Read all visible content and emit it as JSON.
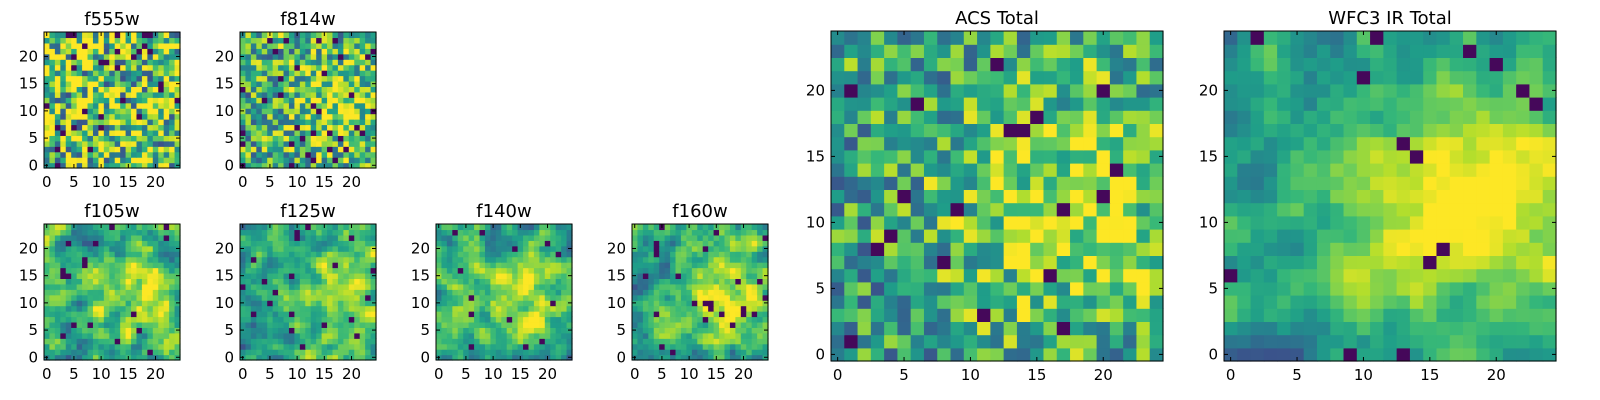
{
  "chart_data": [
    {
      "type": "heatmap",
      "title": "f555w",
      "grid_size": 25,
      "xlim": [
        0,
        25
      ],
      "ylim": [
        0,
        25
      ],
      "xticks": [
        0,
        5,
        10,
        15,
        20
      ],
      "yticks": [
        0,
        5,
        10,
        15,
        20
      ],
      "colormap": "viridis",
      "seed": 11,
      "smooth": 0,
      "trend": 0.0,
      "dark_fraction": 0.05
    },
    {
      "type": "heatmap",
      "title": "f814w",
      "grid_size": 25,
      "xlim": [
        0,
        25
      ],
      "ylim": [
        0,
        25
      ],
      "xticks": [
        0,
        5,
        10,
        15,
        20
      ],
      "yticks": [
        0,
        5,
        10,
        15,
        20
      ],
      "colormap": "viridis",
      "seed": 23,
      "smooth": 0,
      "trend": 0.25,
      "dark_fraction": 0.05
    },
    {
      "type": "heatmap",
      "title": "f105w",
      "grid_size": 25,
      "xlim": [
        0,
        25
      ],
      "ylim": [
        0,
        25
      ],
      "xticks": [
        0,
        5,
        10,
        15,
        20
      ],
      "yticks": [
        0,
        5,
        10,
        15,
        20
      ],
      "colormap": "viridis",
      "seed": 37,
      "smooth": 1,
      "trend": 0.3,
      "dark_fraction": 0.03
    },
    {
      "type": "heatmap",
      "title": "f125w",
      "grid_size": 25,
      "xlim": [
        0,
        25
      ],
      "ylim": [
        0,
        25
      ],
      "xticks": [
        0,
        5,
        10,
        15,
        20
      ],
      "yticks": [
        0,
        5,
        10,
        15,
        20
      ],
      "colormap": "viridis",
      "seed": 41,
      "smooth": 1,
      "trend": 0.3,
      "dark_fraction": 0.03
    },
    {
      "type": "heatmap",
      "title": "f140w",
      "grid_size": 25,
      "xlim": [
        0,
        25
      ],
      "ylim": [
        0,
        25
      ],
      "xticks": [
        0,
        5,
        10,
        15,
        20
      ],
      "yticks": [
        0,
        5,
        10,
        15,
        20
      ],
      "colormap": "viridis",
      "seed": 53,
      "smooth": 1,
      "trend": 0.3,
      "dark_fraction": 0.03
    },
    {
      "type": "heatmap",
      "title": "f160w",
      "grid_size": 25,
      "xlim": [
        0,
        25
      ],
      "ylim": [
        0,
        25
      ],
      "xticks": [
        0,
        5,
        10,
        15,
        20
      ],
      "yticks": [
        0,
        5,
        10,
        15,
        20
      ],
      "colormap": "viridis",
      "seed": 67,
      "smooth": 1,
      "trend": 0.35,
      "dark_fraction": 0.03
    },
    {
      "type": "heatmap",
      "title": "ACS Total",
      "grid_size": 25,
      "xlim": [
        0,
        25
      ],
      "ylim": [
        0,
        25
      ],
      "xticks": [
        0,
        5,
        10,
        15,
        20
      ],
      "yticks": [
        0,
        5,
        10,
        15,
        20
      ],
      "colormap": "viridis",
      "seed": 79,
      "smooth": 0,
      "trend": 0.35,
      "dark_fraction": 0.04
    },
    {
      "type": "heatmap",
      "title": "WFC3 IR Total",
      "grid_size": 25,
      "xlim": [
        0,
        25
      ],
      "ylim": [
        0,
        25
      ],
      "xticks": [
        0,
        5,
        10,
        15,
        20
      ],
      "yticks": [
        0,
        5,
        10,
        15,
        20
      ],
      "colormap": "viridis",
      "seed": 97,
      "smooth": 1,
      "trend": 0.45,
      "dark_fraction": 0.03
    }
  ]
}
